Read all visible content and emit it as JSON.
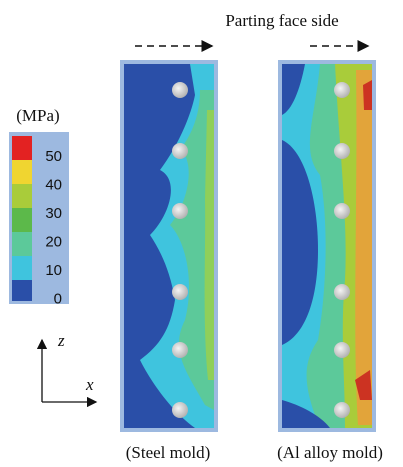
{
  "header": {
    "title": "Parting face side"
  },
  "colorbar": {
    "unit": "(MPa)",
    "labels": [
      50,
      40,
      30,
      20,
      10,
      0
    ]
  },
  "axes": {
    "vertical": "z",
    "horizontal": "x"
  },
  "panels": [
    {
      "label": "(Steel mold)"
    },
    {
      "label": "(Al alloy mold)"
    }
  ]
}
